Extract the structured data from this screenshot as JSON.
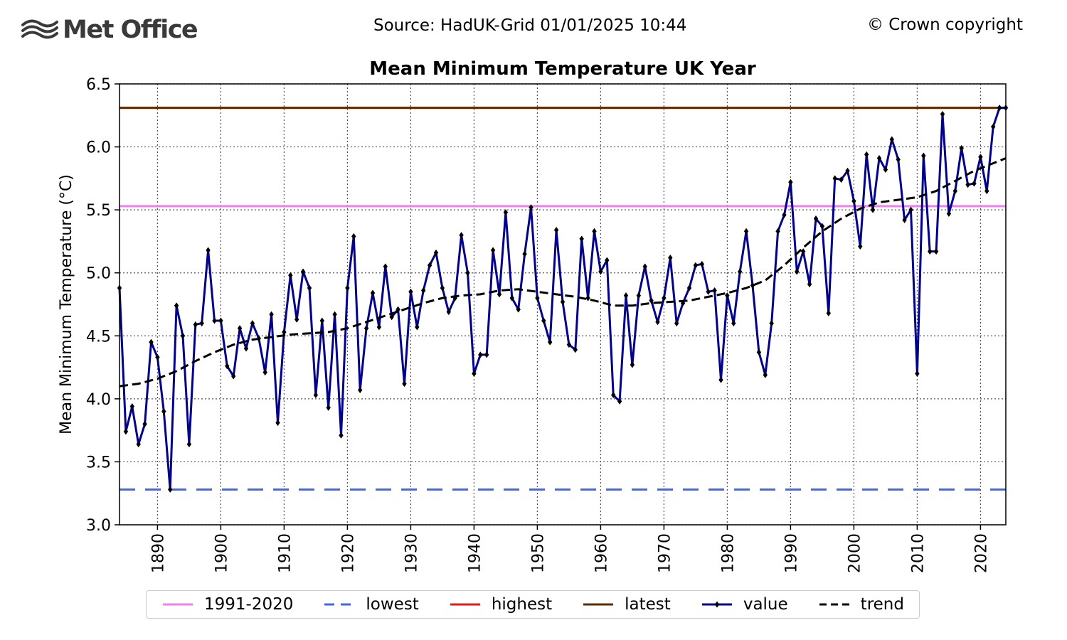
{
  "header": {
    "brand": "Met Office",
    "source": "Source: HadUK-Grid 01/01/2025 10:44",
    "copyright": "© Crown copyright"
  },
  "colors": {
    "baseline": "#ee82ee",
    "lowest": "#4169e1",
    "highest": "#e41a1c",
    "latest": "#5c2d00",
    "value": "#00008b",
    "trend": "#000000"
  },
  "chart_data": {
    "type": "line",
    "title": "Mean Minimum Temperature UK Year",
    "xlabel": "",
    "ylabel": "Mean Minimum Temperature (°C)",
    "xlim": [
      1884,
      2024
    ],
    "ylim": [
      3.0,
      6.5
    ],
    "x_ticks": [
      "1890",
      "1900",
      "1910",
      "1920",
      "1930",
      "1940",
      "1950",
      "1960",
      "1970",
      "1980",
      "1990",
      "2000",
      "2010",
      "2020"
    ],
    "y_ticks": [
      "3.0",
      "3.5",
      "4.0",
      "4.5",
      "5.0",
      "5.5",
      "6.0",
      "6.5"
    ],
    "grid": true,
    "legend_position": "bottom",
    "reference_lines": [
      {
        "name": "1991-2020",
        "value": 5.53,
        "style": "solid"
      },
      {
        "name": "lowest",
        "value": 3.28,
        "style": "dashed"
      },
      {
        "name": "highest",
        "value": 6.31,
        "style": "solid"
      },
      {
        "name": "latest",
        "value": 6.31,
        "style": "solid"
      }
    ],
    "series": [
      {
        "name": "value",
        "start_year": 1884,
        "values": [
          4.88,
          3.74,
          3.94,
          3.64,
          3.8,
          4.45,
          4.33,
          3.9,
          3.28,
          4.74,
          4.5,
          3.64,
          4.59,
          4.6,
          5.18,
          4.62,
          4.62,
          4.26,
          4.18,
          4.56,
          4.4,
          4.6,
          4.48,
          4.21,
          4.67,
          3.81,
          4.53,
          4.98,
          4.63,
          5.01,
          4.88,
          4.03,
          4.62,
          3.93,
          4.67,
          3.71,
          4.88,
          5.29,
          4.07,
          4.56,
          4.84,
          4.57,
          5.05,
          4.65,
          4.71,
          4.12,
          4.85,
          4.57,
          4.86,
          5.06,
          5.16,
          4.88,
          4.69,
          4.8,
          5.3,
          5.0,
          4.2,
          4.35,
          4.35,
          5.18,
          4.83,
          5.48,
          4.8,
          4.71,
          5.15,
          5.52,
          4.8,
          4.62,
          4.45,
          5.34,
          4.77,
          4.43,
          4.39,
          5.27,
          4.8,
          5.33,
          5.01,
          5.1,
          4.03,
          3.98,
          4.82,
          4.27,
          4.82,
          5.05,
          4.78,
          4.61,
          4.8,
          5.12,
          4.6,
          4.76,
          4.88,
          5.06,
          5.07,
          4.85,
          4.86,
          4.15,
          4.82,
          4.6,
          5.01,
          5.33,
          4.9,
          4.37,
          4.19,
          4.6,
          5.33,
          5.46,
          5.72,
          5.01,
          5.17,
          4.91,
          5.43,
          5.37,
          4.68,
          5.75,
          5.74,
          5.81,
          5.57,
          5.21,
          5.94,
          5.5,
          5.91,
          5.82,
          6.06,
          5.9,
          5.42,
          5.5,
          4.2,
          5.93,
          5.17,
          5.17,
          6.26,
          5.47,
          5.65,
          5.99,
          5.7,
          5.71,
          5.92,
          5.65,
          6.16,
          6.31,
          6.31
        ]
      },
      {
        "name": "trend",
        "points": [
          [
            1884,
            4.1
          ],
          [
            1887,
            4.12
          ],
          [
            1890,
            4.16
          ],
          [
            1893,
            4.22
          ],
          [
            1896,
            4.3
          ],
          [
            1899,
            4.37
          ],
          [
            1902,
            4.43
          ],
          [
            1905,
            4.47
          ],
          [
            1908,
            4.49
          ],
          [
            1911,
            4.51
          ],
          [
            1914,
            4.52
          ],
          [
            1917,
            4.53
          ],
          [
            1920,
            4.56
          ],
          [
            1923,
            4.61
          ],
          [
            1926,
            4.66
          ],
          [
            1929,
            4.71
          ],
          [
            1932,
            4.76
          ],
          [
            1935,
            4.8
          ],
          [
            1938,
            4.82
          ],
          [
            1941,
            4.83
          ],
          [
            1944,
            4.86
          ],
          [
            1947,
            4.87
          ],
          [
            1950,
            4.85
          ],
          [
            1953,
            4.83
          ],
          [
            1956,
            4.81
          ],
          [
            1959,
            4.78
          ],
          [
            1962,
            4.74
          ],
          [
            1965,
            4.74
          ],
          [
            1968,
            4.76
          ],
          [
            1971,
            4.77
          ],
          [
            1974,
            4.78
          ],
          [
            1977,
            4.81
          ],
          [
            1980,
            4.84
          ],
          [
            1983,
            4.88
          ],
          [
            1986,
            4.94
          ],
          [
            1989,
            5.06
          ],
          [
            1992,
            5.2
          ],
          [
            1995,
            5.33
          ],
          [
            1998,
            5.43
          ],
          [
            2001,
            5.51
          ],
          [
            2004,
            5.56
          ],
          [
            2007,
            5.58
          ],
          [
            2010,
            5.6
          ],
          [
            2013,
            5.65
          ],
          [
            2016,
            5.73
          ],
          [
            2019,
            5.81
          ],
          [
            2022,
            5.87
          ],
          [
            2024,
            5.91
          ]
        ]
      }
    ]
  }
}
